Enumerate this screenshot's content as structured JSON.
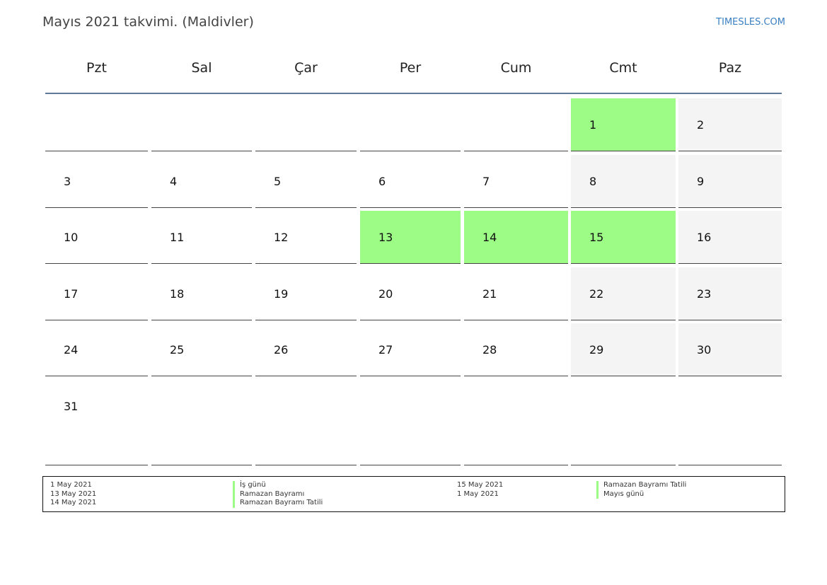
{
  "header": {
    "title": "Mayıs 2021 takvimi. (Maldivler)",
    "brand": "TIMESLES.COM"
  },
  "weekdays": [
    "Pzt",
    "Sal",
    "Çar",
    "Per",
    "Cum",
    "Cmt",
    "Paz"
  ],
  "weeks": [
    [
      {
        "day": "",
        "type": "normal"
      },
      {
        "day": "",
        "type": "normal"
      },
      {
        "day": "",
        "type": "normal"
      },
      {
        "day": "",
        "type": "normal"
      },
      {
        "day": "",
        "type": "normal"
      },
      {
        "day": "1",
        "type": "holiday"
      },
      {
        "day": "2",
        "type": "weekend"
      }
    ],
    [
      {
        "day": "3",
        "type": "normal"
      },
      {
        "day": "4",
        "type": "normal"
      },
      {
        "day": "5",
        "type": "normal"
      },
      {
        "day": "6",
        "type": "normal"
      },
      {
        "day": "7",
        "type": "normal"
      },
      {
        "day": "8",
        "type": "weekend"
      },
      {
        "day": "9",
        "type": "weekend"
      }
    ],
    [
      {
        "day": "10",
        "type": "normal"
      },
      {
        "day": "11",
        "type": "normal"
      },
      {
        "day": "12",
        "type": "normal"
      },
      {
        "day": "13",
        "type": "holiday"
      },
      {
        "day": "14",
        "type": "holiday"
      },
      {
        "day": "15",
        "type": "holiday"
      },
      {
        "day": "16",
        "type": "weekend"
      }
    ],
    [
      {
        "day": "17",
        "type": "normal"
      },
      {
        "day": "18",
        "type": "normal"
      },
      {
        "day": "19",
        "type": "normal"
      },
      {
        "day": "20",
        "type": "normal"
      },
      {
        "day": "21",
        "type": "normal"
      },
      {
        "day": "22",
        "type": "weekend"
      },
      {
        "day": "23",
        "type": "weekend"
      }
    ],
    [
      {
        "day": "24",
        "type": "normal"
      },
      {
        "day": "25",
        "type": "normal"
      },
      {
        "day": "26",
        "type": "normal"
      },
      {
        "day": "27",
        "type": "normal"
      },
      {
        "day": "28",
        "type": "normal"
      },
      {
        "day": "29",
        "type": "weekend"
      },
      {
        "day": "30",
        "type": "weekend"
      }
    ],
    [
      {
        "day": "31",
        "type": "normal"
      },
      {
        "day": "",
        "type": "normal"
      },
      {
        "day": "",
        "type": "normal"
      },
      {
        "day": "",
        "type": "normal"
      },
      {
        "day": "",
        "type": "normal"
      },
      {
        "day": "",
        "type": "normal"
      },
      {
        "day": "",
        "type": "normal"
      }
    ]
  ],
  "legend": {
    "left_dates": [
      "1 May 2021",
      "13 May 2021",
      "14 May 2021"
    ],
    "left_names": [
      "İş günü",
      "Ramazan Bayramı",
      "Ramazan Bayramı Tatili"
    ],
    "right_dates": [
      "15 May 2021",
      "1 May 2021"
    ],
    "right_names": [
      "Ramazan Bayramı Tatili",
      "Mayıs günü"
    ]
  },
  "colors": {
    "holiday": "#9cfc86",
    "weekend": "#f4f4f4",
    "header_rule": "#5f7a99",
    "brand": "#3a7fc1"
  }
}
